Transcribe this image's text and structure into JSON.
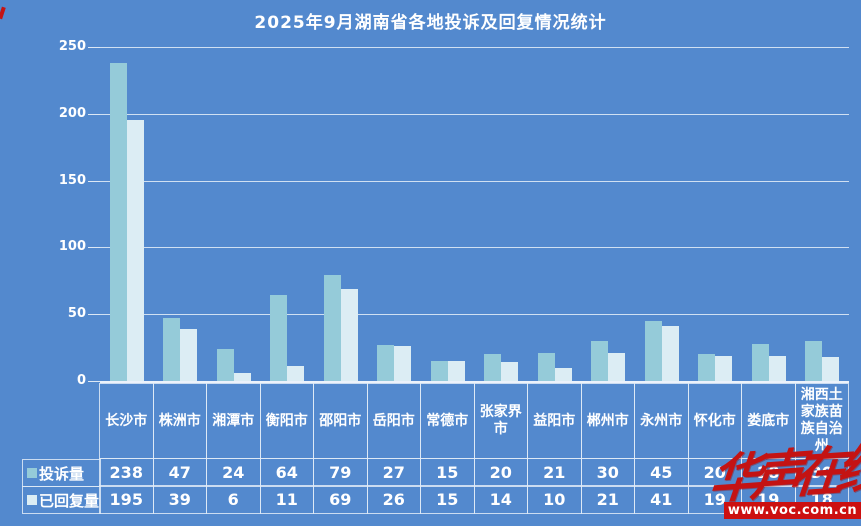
{
  "title": "2025年9月湖南省各地投诉及回复情况统计",
  "watermark": {
    "logo_text": "华声在线",
    "url": "www.voc.com.cn",
    "red": "#cc1010"
  },
  "colors": {
    "background": "#5389ce",
    "series_complaints": "#95cbd9",
    "series_replied": "#dcedf4",
    "gridline": "#ecf3fa",
    "text": "#ffffff"
  },
  "chart_data": {
    "type": "bar",
    "title": "2025年9月湖南省各地投诉及回复情况统计",
    "categories": [
      "长沙市",
      "株洲市",
      "湘潭市",
      "衡阳市",
      "邵阳市",
      "岳阳市",
      "常德市",
      "张家界市",
      "益阳市",
      "郴州市",
      "永州市",
      "怀化市",
      "娄底市",
      "湘西土家族苗族自治州"
    ],
    "series": [
      {
        "name": "投诉量",
        "color": "#95cbd9",
        "values": [
          238,
          47,
          24,
          64,
          79,
          27,
          15,
          20,
          21,
          30,
          45,
          20,
          28,
          30
        ]
      },
      {
        "name": "已回复量",
        "color": "#dcedf4",
        "values": [
          195,
          39,
          6,
          11,
          69,
          26,
          15,
          14,
          10,
          21,
          41,
          19,
          19,
          18
        ]
      }
    ],
    "xlabel": "",
    "ylabel": "",
    "ylim": [
      0,
      250
    ],
    "yticks": [
      0,
      50,
      100,
      150,
      200,
      250
    ],
    "grid": true,
    "legend_position": "bottom-table"
  }
}
